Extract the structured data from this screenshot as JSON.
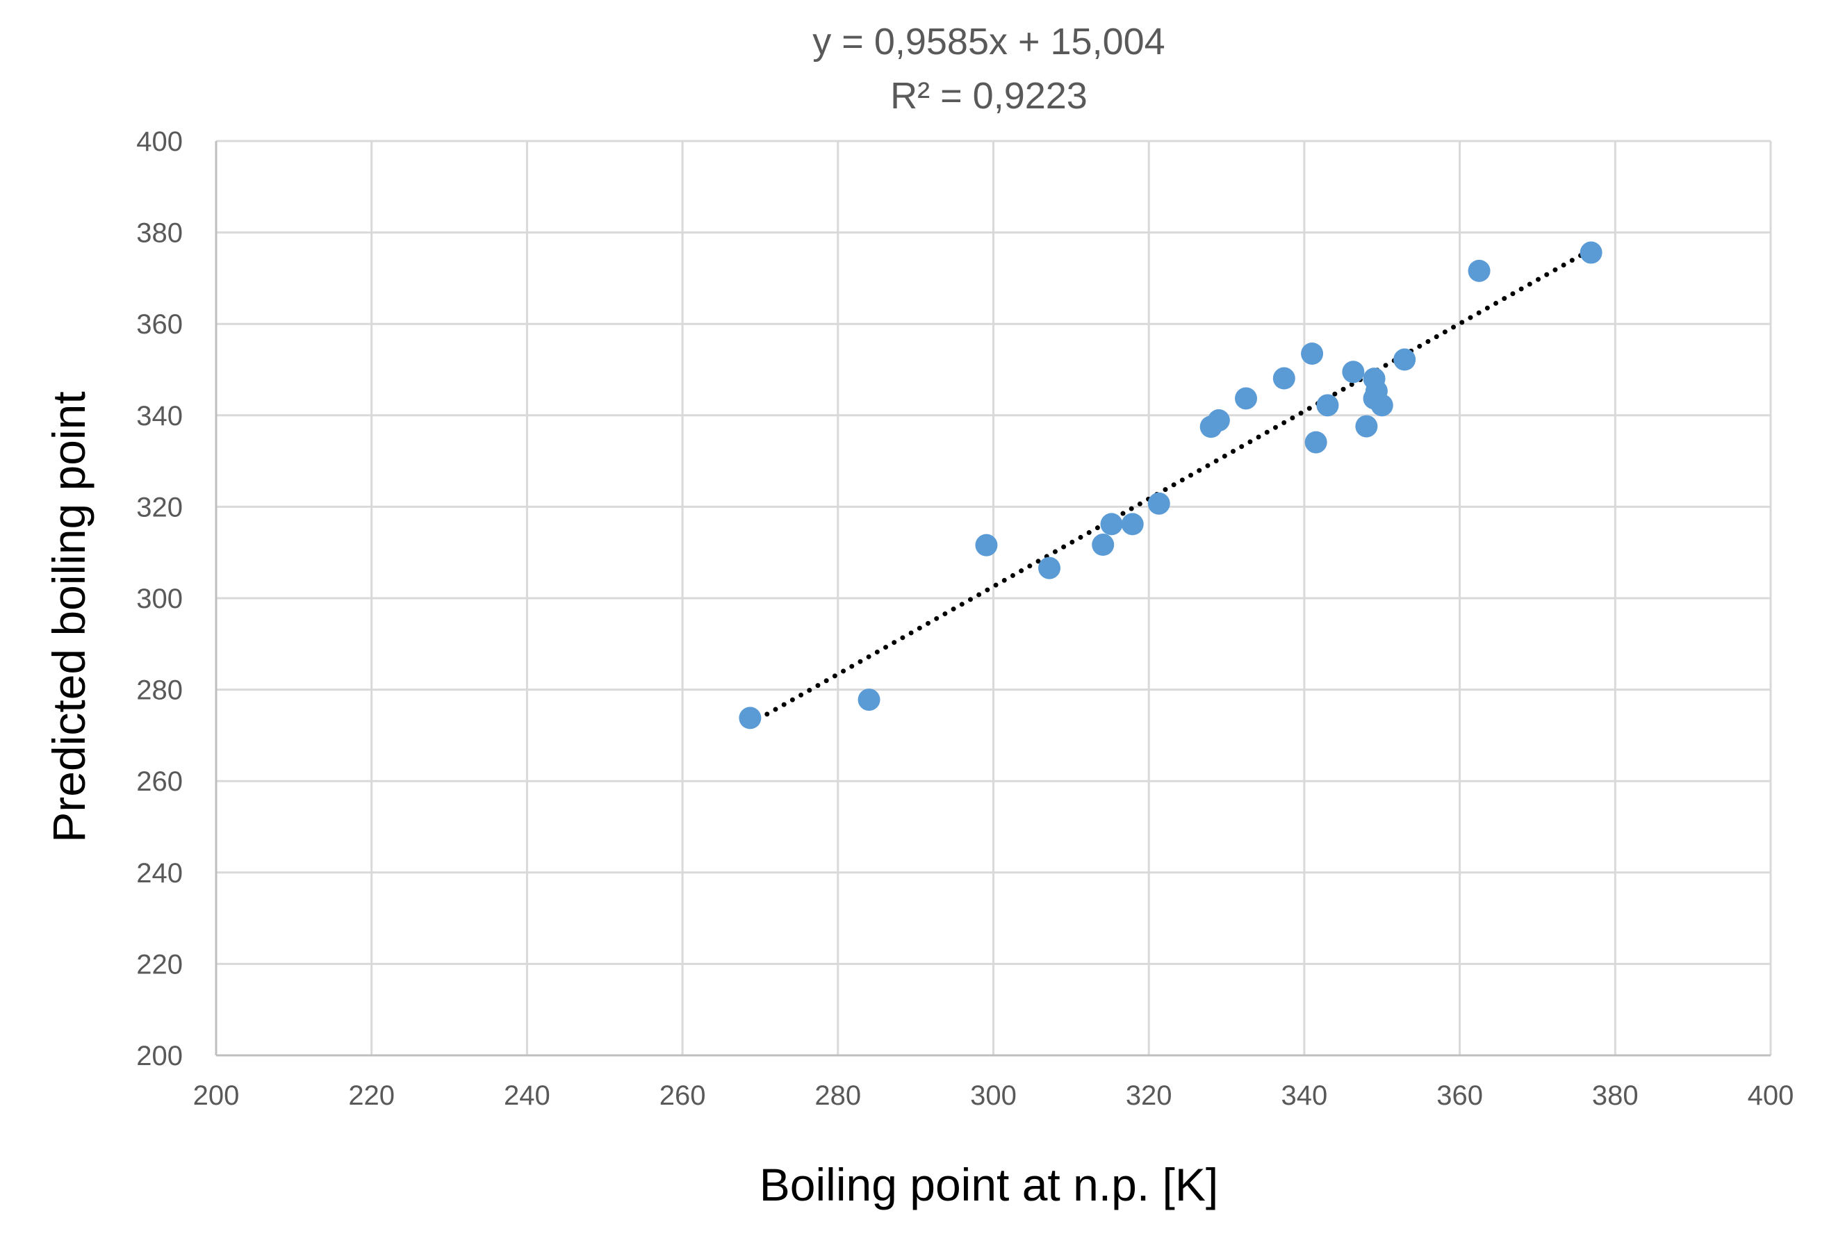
{
  "chart_data": {
    "type": "scatter",
    "title_lines": [
      "y = 0,9585x + 15,004",
      "R² = 0,9223"
    ],
    "xlabel": "Boiling point at n.p. [K]",
    "ylabel": "Predicted boiling point",
    "xlim": [
      200,
      400
    ],
    "ylim": [
      200,
      400
    ],
    "xticks": [
      "200",
      "220",
      "240",
      "260",
      "280",
      "300",
      "320",
      "340",
      "360",
      "380",
      "400"
    ],
    "yticks": [
      "200",
      "220",
      "240",
      "260",
      "280",
      "300",
      "320",
      "340",
      "360",
      "380",
      "400"
    ],
    "grid": true,
    "marker_color": "#5B9BD5",
    "trendline": {
      "slope": 0.9585,
      "intercept": 15.004,
      "x_range": [
        268.7,
        376.9
      ],
      "style": "dotted",
      "color": "#000000"
    },
    "points": [
      {
        "x": 268.7,
        "y": 273.8
      },
      {
        "x": 284.0,
        "y": 277.8
      },
      {
        "x": 299.1,
        "y": 311.6
      },
      {
        "x": 307.2,
        "y": 306.6
      },
      {
        "x": 314.1,
        "y": 311.7
      },
      {
        "x": 315.2,
        "y": 316.2
      },
      {
        "x": 317.9,
        "y": 316.2
      },
      {
        "x": 321.3,
        "y": 320.7
      },
      {
        "x": 328.0,
        "y": 337.5
      },
      {
        "x": 329.0,
        "y": 338.9
      },
      {
        "x": 332.5,
        "y": 343.7
      },
      {
        "x": 337.4,
        "y": 348.1
      },
      {
        "x": 341.0,
        "y": 353.5
      },
      {
        "x": 341.5,
        "y": 334.1
      },
      {
        "x": 343.0,
        "y": 342.2
      },
      {
        "x": 346.3,
        "y": 349.5
      },
      {
        "x": 348.0,
        "y": 337.6
      },
      {
        "x": 349.0,
        "y": 348.0
      },
      {
        "x": 349.3,
        "y": 345.3
      },
      {
        "x": 349.0,
        "y": 343.7
      },
      {
        "x": 350.0,
        "y": 342.2
      },
      {
        "x": 352.9,
        "y": 352.2
      },
      {
        "x": 362.5,
        "y": 371.6
      },
      {
        "x": 376.9,
        "y": 375.6
      }
    ]
  }
}
